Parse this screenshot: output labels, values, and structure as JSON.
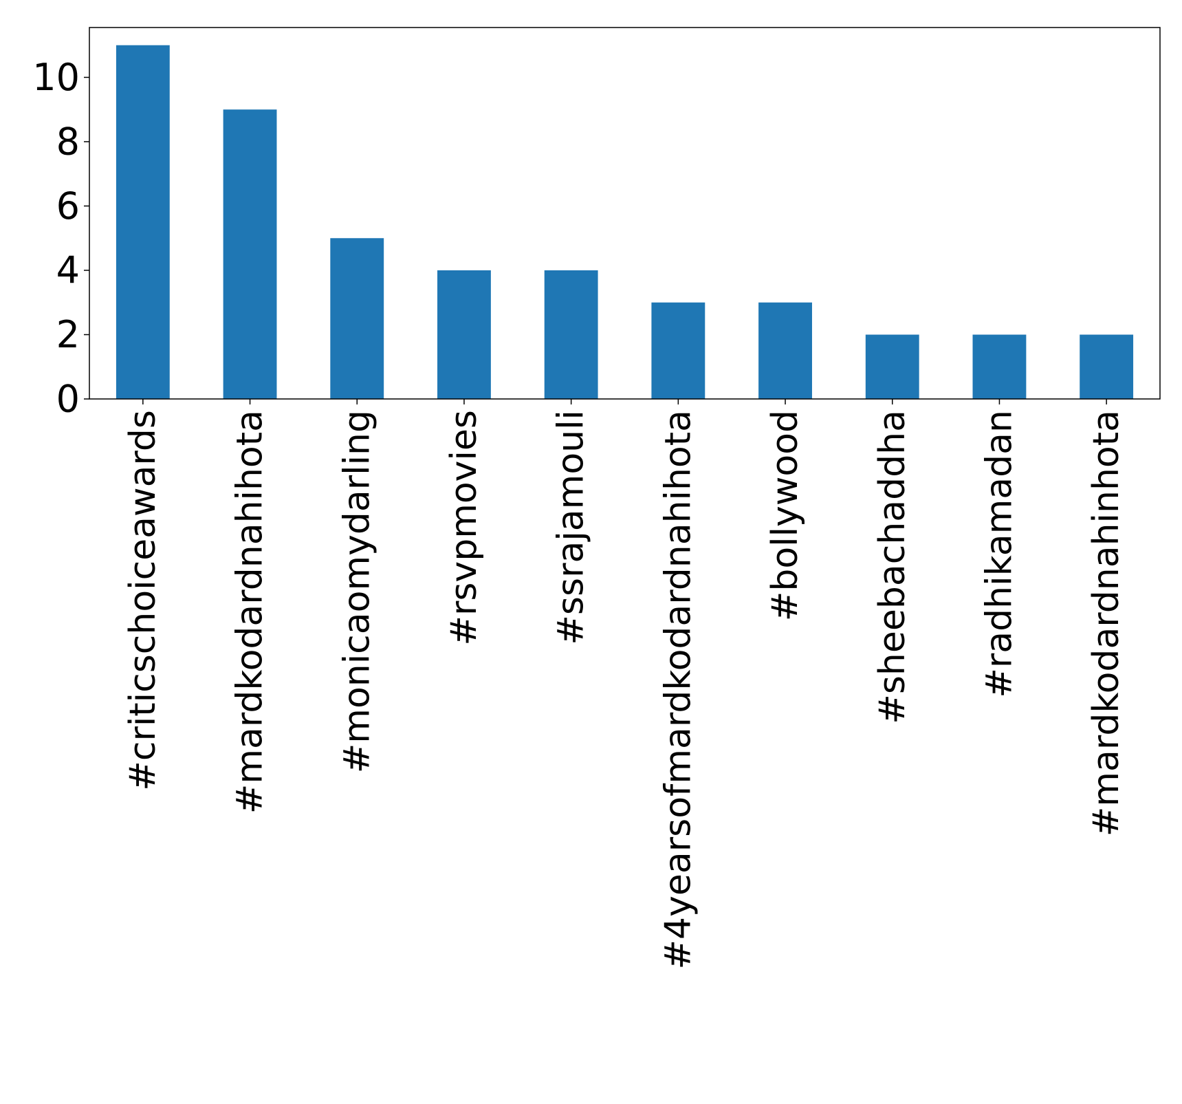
{
  "chart_data": {
    "type": "bar",
    "title": "",
    "xlabel": "",
    "ylabel": "",
    "categories": [
      "#criticschoiceawards",
      "#mardkodardnahihota",
      "#monicaomydarling",
      "#rsvpmovies",
      "#ssrajamouli",
      "#4yearsofmardkodardnahihota",
      "#bollywood",
      "#sheebachaddha",
      "#radhikamadan",
      "#mardkodardnahinhota"
    ],
    "values": [
      11,
      9,
      5,
      4,
      4,
      3,
      3,
      2,
      2,
      2
    ],
    "ylim": [
      0,
      11.55
    ],
    "yticks": [
      0,
      2,
      4,
      6,
      8,
      10
    ],
    "grid": false,
    "legend": "none",
    "bar_color": "#1f77b4"
  }
}
